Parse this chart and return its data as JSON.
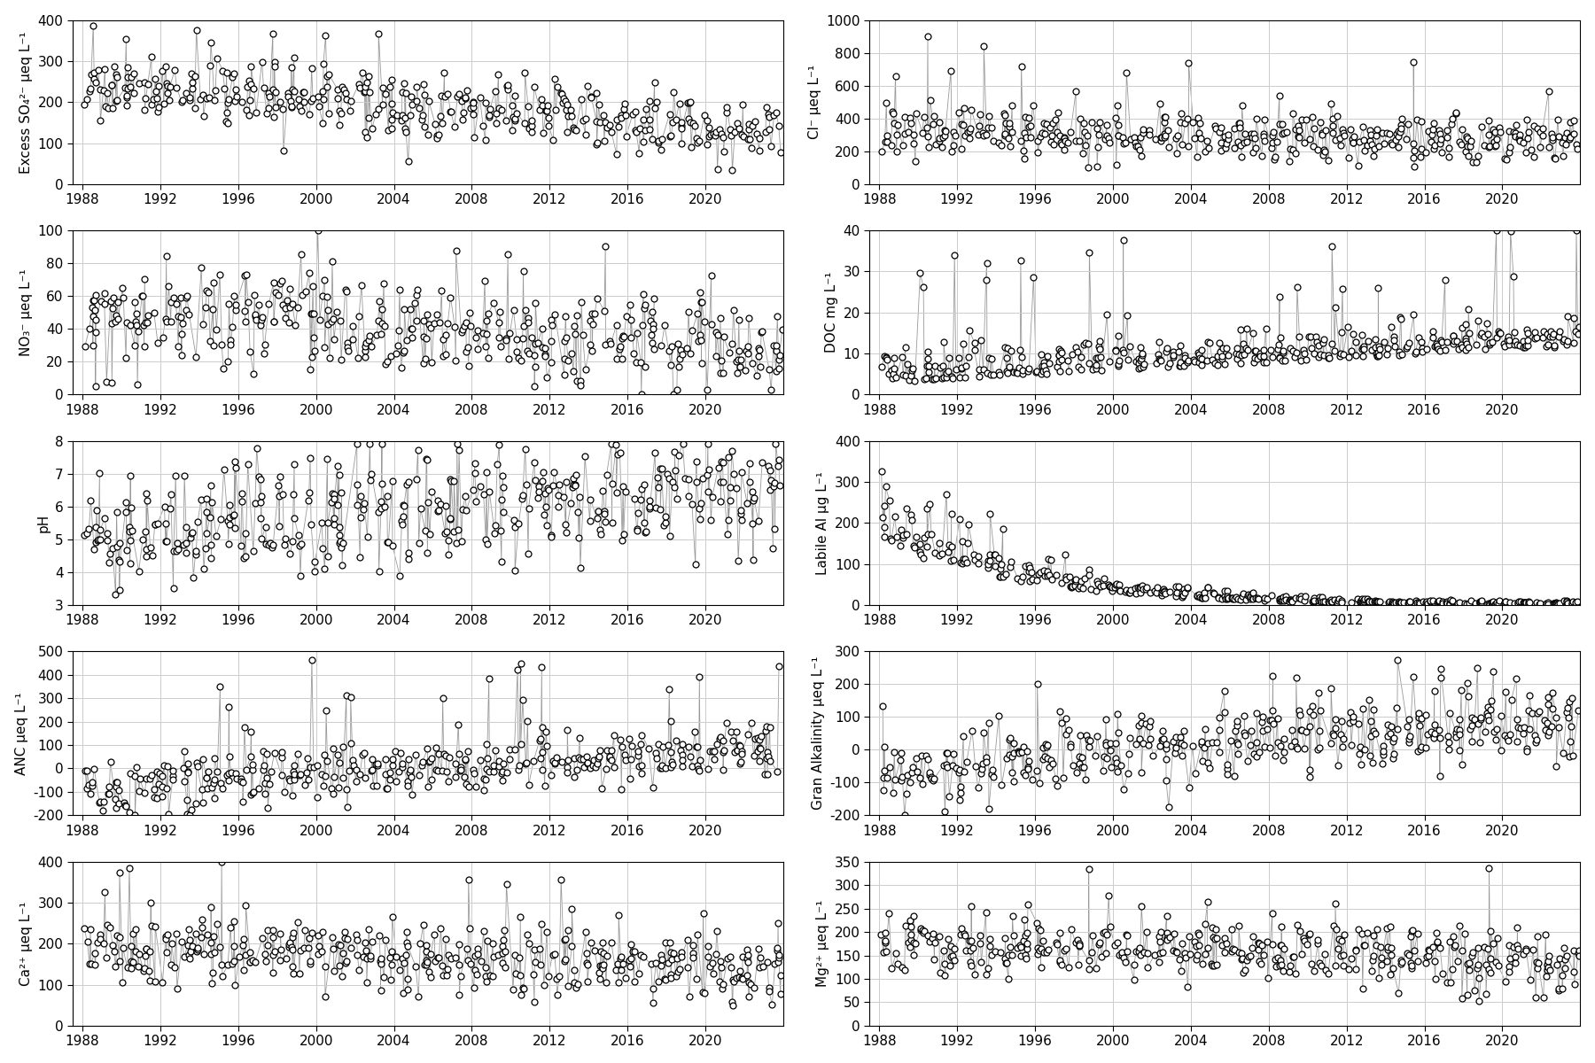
{
  "plots": [
    {
      "ylabel": "Excess SO₄²⁻ μeq L⁻¹",
      "ylim": [
        0,
        400
      ],
      "yticks": [
        0,
        100,
        200,
        300,
        400
      ],
      "row": 0,
      "col": 0
    },
    {
      "ylabel": "Cl⁻ μeq L⁻¹",
      "ylim": [
        0,
        1000
      ],
      "yticks": [
        0,
        200,
        400,
        600,
        800,
        1000
      ],
      "row": 0,
      "col": 1
    },
    {
      "ylabel": "NO₃⁻ μeq L⁻¹",
      "ylim": [
        0,
        100
      ],
      "yticks": [
        0,
        20,
        40,
        60,
        80,
        100
      ],
      "row": 1,
      "col": 0
    },
    {
      "ylabel": "DOC mg L⁻¹",
      "ylim": [
        0,
        40
      ],
      "yticks": [
        0,
        10,
        20,
        30,
        40
      ],
      "row": 1,
      "col": 1
    },
    {
      "ylabel": "pH",
      "ylim": [
        3,
        8
      ],
      "yticks": [
        3,
        4,
        5,
        6,
        7,
        8
      ],
      "row": 2,
      "col": 0
    },
    {
      "ylabel": "Labile Al μg L⁻¹",
      "ylim": [
        0,
        400
      ],
      "yticks": [
        0,
        100,
        200,
        300,
        400
      ],
      "row": 2,
      "col": 1
    },
    {
      "ylabel": "ANC μeq L⁻¹",
      "ylim": [
        -200,
        500
      ],
      "yticks": [
        -200,
        -100,
        0,
        100,
        200,
        300,
        400,
        500
      ],
      "row": 3,
      "col": 0
    },
    {
      "ylabel": "Gran Alkalinity μeq L⁻¹",
      "ylim": [
        -200,
        300
      ],
      "yticks": [
        -200,
        -100,
        0,
        100,
        200,
        300
      ],
      "row": 3,
      "col": 1
    },
    {
      "ylabel": "Ca²⁺ μeq L⁻¹",
      "ylim": [
        0,
        400
      ],
      "yticks": [
        0,
        100,
        200,
        300,
        400
      ],
      "row": 4,
      "col": 0
    },
    {
      "ylabel": "Mg²⁺ μeq L⁻¹",
      "ylim": [
        0,
        350
      ],
      "yticks": [
        0,
        50,
        100,
        150,
        200,
        250,
        300,
        350
      ],
      "row": 4,
      "col": 1
    }
  ],
  "xticks": [
    1988,
    1992,
    1996,
    2000,
    2004,
    2008,
    2012,
    2016,
    2020
  ],
  "xlim": [
    1987.5,
    2024
  ],
  "marker": "o",
  "marker_size": 5,
  "marker_facecolor": "white",
  "marker_edgecolor": "black",
  "marker_edgewidth": 0.9,
  "line_color": "#999999",
  "line_width": 0.6,
  "grid_color": "#cccccc",
  "grid_linewidth": 0.7,
  "bg_color": "white",
  "tick_fontsize": 11,
  "ylabel_fontsize": 11
}
